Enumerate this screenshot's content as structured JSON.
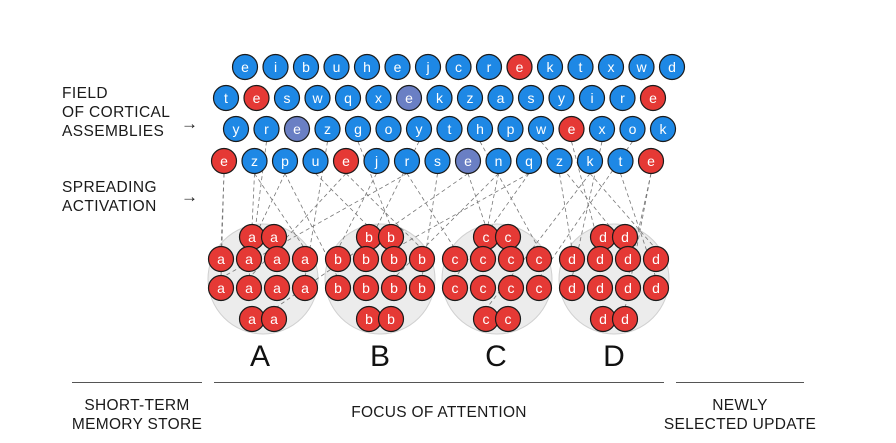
{
  "labels": {
    "field": "FIELD\nOF CORTICAL\nASSEMBLIES",
    "spreading": "SPREADING\nACTIVATION",
    "arrow": "→"
  },
  "grid": {
    "rows": [
      [
        "e",
        "i",
        "b",
        "u",
        "h",
        "e",
        "j",
        "c",
        "r",
        "e",
        "k",
        "t",
        "x",
        "w",
        "d"
      ],
      [
        "t",
        "e",
        "s",
        "w",
        "q",
        "x",
        "e",
        "k",
        "z",
        "a",
        "s",
        "y",
        "i",
        "r",
        "e"
      ],
      [
        "y",
        "r",
        "e",
        "z",
        "g",
        "o",
        "y",
        "t",
        "h",
        "p",
        "w",
        "e",
        "x",
        "o",
        "k"
      ],
      [
        "e",
        "z",
        "p",
        "u",
        "e",
        "j",
        "r",
        "s",
        "e",
        "n",
        "q",
        "z",
        "k",
        "t",
        "e"
      ]
    ],
    "states": [
      [
        "b",
        "b",
        "b",
        "b",
        "b",
        "b",
        "b",
        "b",
        "b",
        "r",
        "b",
        "b",
        "b",
        "b",
        "b"
      ],
      [
        "b",
        "r",
        "b",
        "b",
        "b",
        "b",
        "d",
        "b",
        "b",
        "b",
        "b",
        "b",
        "b",
        "b",
        "r"
      ],
      [
        "b",
        "b",
        "d",
        "b",
        "b",
        "b",
        "b",
        "b",
        "b",
        "b",
        "b",
        "r",
        "b",
        "b",
        "b"
      ],
      [
        "r",
        "b",
        "b",
        "b",
        "r",
        "b",
        "b",
        "b",
        "d",
        "b",
        "b",
        "b",
        "b",
        "b",
        "r"
      ]
    ]
  },
  "groups": [
    {
      "name": "A",
      "letter": "a"
    },
    {
      "name": "B",
      "letter": "b"
    },
    {
      "name": "C",
      "letter": "c"
    },
    {
      "name": "D",
      "letter": "d"
    }
  ],
  "bottom": {
    "stm": "SHORT-TERM\nMEMORY STORE",
    "foa": "FOCUS OF ATTENTION",
    "update": "NEWLY\nSELECTED UPDATE"
  },
  "colors": {
    "blue": "#1e88e5",
    "red": "#e53935",
    "dim": "#6a7fc4",
    "halo": "#ececec"
  }
}
